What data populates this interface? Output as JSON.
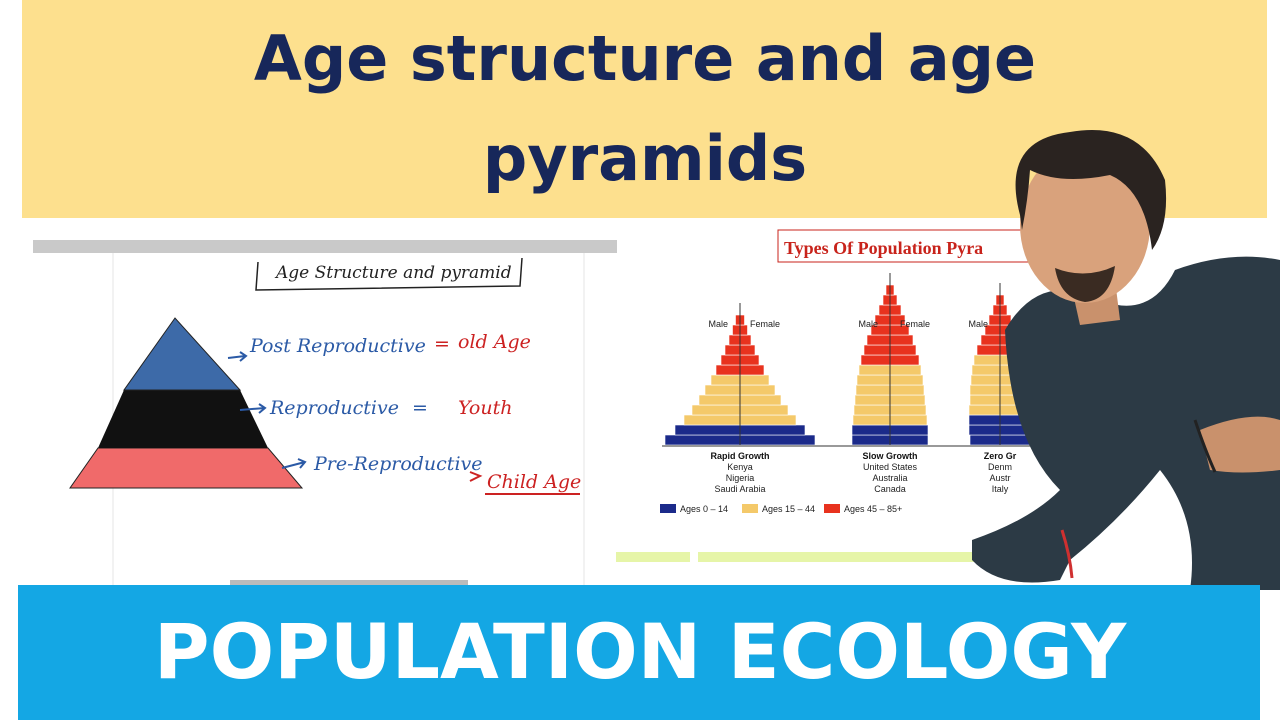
{
  "header": {
    "title_line1": "Age structure and age",
    "title_line2": "pyramids"
  },
  "whiteboard": {
    "heading": "Age Structure and pyramid",
    "rows": [
      {
        "stage": "Post Reproductive",
        "equals": "=",
        "label": "old Age"
      },
      {
        "stage": "Reproductive",
        "equals": "=",
        "label": "Youth"
      },
      {
        "stage": "Pre-Reproductive",
        "label": "Child Age"
      }
    ]
  },
  "slide": {
    "title": "Types Of Population Pyra",
    "panels": [
      {
        "male": "Male",
        "female": "Female",
        "name": "Rapid Growth",
        "countries": [
          "Kenya",
          "Nigeria",
          "Saudi Arabia"
        ]
      },
      {
        "male": "Male",
        "female": "Female",
        "name": "Slow Growth",
        "countries": [
          "United States",
          "Australia",
          "Canada"
        ]
      },
      {
        "male": "Male",
        "name": "Zero Gr",
        "countries": [
          "Denm",
          "Austr",
          "Italy"
        ]
      }
    ],
    "legend": [
      "Ages 0 – 14",
      "Ages 15 – 44",
      "Ages 45 – 85+"
    ]
  },
  "footer": {
    "title": "POPULATION ECOLOGY"
  }
}
